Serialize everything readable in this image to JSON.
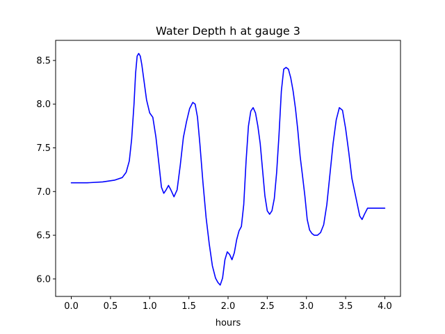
{
  "chart_data": {
    "type": "line",
    "title": "Water Depth h at gauge 3",
    "xlabel": "hours",
    "ylabel": "",
    "xlim": [
      -0.2,
      4.2
    ],
    "ylim": [
      5.8,
      8.73
    ],
    "xticks": [
      0.0,
      0.5,
      1.0,
      1.5,
      2.0,
      2.5,
      3.0,
      3.5,
      4.0
    ],
    "xtick_labels": [
      "0.0",
      "0.5",
      "1.0",
      "1.5",
      "2.0",
      "2.5",
      "3.0",
      "3.5",
      "4.0"
    ],
    "yticks": [
      6.0,
      6.5,
      7.0,
      7.5,
      8.0,
      8.5
    ],
    "ytick_labels": [
      "6.0",
      "6.5",
      "7.0",
      "7.5",
      "8.0",
      "8.5"
    ],
    "grid": false,
    "series": [
      {
        "color": "#0000ff",
        "x": [
          0.0,
          0.2,
          0.4,
          0.55,
          0.65,
          0.7,
          0.74,
          0.77,
          0.8,
          0.82,
          0.84,
          0.86,
          0.88,
          0.9,
          0.93,
          0.96,
          1.0,
          1.04,
          1.08,
          1.12,
          1.15,
          1.18,
          1.21,
          1.24,
          1.27,
          1.31,
          1.35,
          1.39,
          1.43,
          1.47,
          1.51,
          1.55,
          1.58,
          1.61,
          1.64,
          1.68,
          1.72,
          1.76,
          1.8,
          1.84,
          1.87,
          1.9,
          1.93,
          1.96,
          1.99,
          2.02,
          2.05,
          2.08,
          2.11,
          2.14,
          2.17,
          2.2,
          2.23,
          2.26,
          2.29,
          2.32,
          2.35,
          2.38,
          2.41,
          2.44,
          2.47,
          2.5,
          2.53,
          2.56,
          2.59,
          2.62,
          2.65,
          2.68,
          2.71,
          2.74,
          2.77,
          2.8,
          2.83,
          2.86,
          2.89,
          2.92,
          2.95,
          2.98,
          3.01,
          3.04,
          3.07,
          3.1,
          3.14,
          3.18,
          3.22,
          3.26,
          3.3,
          3.34,
          3.38,
          3.42,
          3.46,
          3.5,
          3.54,
          3.58,
          3.62,
          3.65,
          3.68,
          3.71,
          3.74,
          3.78,
          3.82,
          3.86,
          3.9,
          3.94,
          3.97,
          4.0
        ],
        "y": [
          7.1,
          7.1,
          7.11,
          7.13,
          7.16,
          7.22,
          7.35,
          7.6,
          8.0,
          8.35,
          8.55,
          8.58,
          8.55,
          8.45,
          8.25,
          8.05,
          7.9,
          7.85,
          7.62,
          7.3,
          7.05,
          6.98,
          7.02,
          7.07,
          7.02,
          6.94,
          7.02,
          7.3,
          7.62,
          7.8,
          7.95,
          8.02,
          8.0,
          7.85,
          7.55,
          7.1,
          6.7,
          6.4,
          6.15,
          6.01,
          5.96,
          5.93,
          6.01,
          6.22,
          6.31,
          6.28,
          6.22,
          6.3,
          6.45,
          6.55,
          6.6,
          6.85,
          7.35,
          7.75,
          7.92,
          7.96,
          7.9,
          7.75,
          7.55,
          7.25,
          6.95,
          6.78,
          6.74,
          6.78,
          6.92,
          7.22,
          7.65,
          8.15,
          8.4,
          8.42,
          8.4,
          8.3,
          8.15,
          7.95,
          7.7,
          7.4,
          7.18,
          6.95,
          6.68,
          6.56,
          6.52,
          6.5,
          6.5,
          6.53,
          6.62,
          6.85,
          7.2,
          7.55,
          7.82,
          7.96,
          7.93,
          7.72,
          7.45,
          7.15,
          6.98,
          6.85,
          6.72,
          6.68,
          6.74,
          6.81,
          6.81,
          6.81,
          6.81,
          6.81,
          6.81,
          6.81
        ]
      }
    ]
  }
}
